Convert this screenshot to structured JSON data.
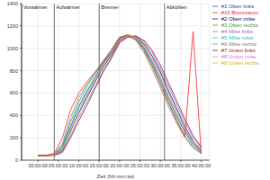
{
  "chart_data": {
    "type": "line",
    "x_label": "Zeit (hh:mm:ss)",
    "x": [
      0,
      2,
      4,
      6,
      8,
      10,
      12,
      14,
      16,
      18,
      20,
      22,
      24,
      26,
      28,
      30,
      32,
      34,
      36,
      38,
      40
    ],
    "xlim": [
      -4,
      42
    ],
    "xticks": [
      {
        "value": 0,
        "label": "00:00:00"
      },
      {
        "value": 5,
        "label": "05:00:00"
      },
      {
        "value": 10,
        "label": "10:00:00"
      },
      {
        "value": 15,
        "label": "15:00:00"
      },
      {
        "value": 20,
        "label": "20:00:00"
      },
      {
        "value": 25,
        "label": "25:00:00"
      },
      {
        "value": 30,
        "label": "30:00:00"
      },
      {
        "value": 35,
        "label": "35:00:00"
      },
      {
        "value": 40,
        "label": "40:00:00"
      }
    ],
    "ylim": [
      0,
      1400
    ],
    "yticks": [
      0,
      200,
      400,
      600,
      800,
      1000,
      1200,
      1400
    ],
    "grid": true,
    "legend": "right",
    "annotations": [
      {
        "label": "Vorwärmer",
        "x": -4
      },
      {
        "label": "Aufwärmer",
        "x": 4
      },
      {
        "label": "Brenner",
        "x": 15
      },
      {
        "label": "Abkühlen",
        "x": 31
      }
    ],
    "series": [
      {
        "name": "#1 Oben links",
        "color": "#1f3fbf",
        "values": [
          40,
          40,
          50,
          120,
          300,
          480,
          620,
          740,
          870,
          960,
          1090,
          1115,
          1095,
          1000,
          870,
          720,
          550,
          390,
          250,
          140,
          70
        ]
      },
      {
        "name": "#2 Oben mitte",
        "color": "#000080",
        "values": [
          40,
          42,
          45,
          90,
          260,
          420,
          560,
          700,
          830,
          940,
          1070,
          1110,
          1105,
          1040,
          930,
          790,
          620,
          460,
          300,
          170,
          90
        ]
      },
      {
        "name": "#3 Oben rechts",
        "color": "#2ca02c",
        "values": [
          45,
          45,
          50,
          130,
          340,
          520,
          660,
          770,
          880,
          980,
          1100,
          1120,
          1090,
          990,
          850,
          690,
          520,
          360,
          220,
          120,
          60
        ]
      },
      {
        "name": "#4 Mitte links",
        "color": "#9467bd",
        "values": [
          40,
          40,
          45,
          80,
          220,
          380,
          520,
          660,
          800,
          920,
          1060,
          1105,
          1110,
          1060,
          960,
          820,
          660,
          500,
          340,
          200,
          110
        ]
      },
      {
        "name": "#5 Mitte mitte",
        "color": "#17becf",
        "values": [
          40,
          40,
          48,
          110,
          290,
          470,
          610,
          730,
          860,
          960,
          1085,
          1115,
          1100,
          1010,
          880,
          730,
          560,
          400,
          260,
          150,
          80
        ]
      },
      {
        "name": "#6 Mitte rechts",
        "color": "#7f7f7f",
        "values": [
          42,
          42,
          50,
          150,
          380,
          560,
          680,
          780,
          890,
          990,
          1100,
          1110,
          1070,
          960,
          810,
          650,
          480,
          330,
          200,
          110,
          60
        ]
      },
      {
        "name": "#7 Unten links",
        "color": "#8c1a1a",
        "values": [
          40,
          40,
          42,
          70,
          200,
          350,
          490,
          640,
          790,
          910,
          1050,
          1100,
          1110,
          1070,
          980,
          850,
          690,
          530,
          370,
          220,
          120
        ]
      },
      {
        "name": "#8 Unten mitte",
        "color": "#e377c2",
        "values": [
          40,
          40,
          45,
          95,
          270,
          440,
          590,
          710,
          840,
          950,
          1075,
          1110,
          1100,
          1030,
          910,
          770,
          600,
          440,
          280,
          160,
          85
        ]
      },
      {
        "name": "#9 Unten rechts",
        "color": "#bcbd22",
        "values": [
          40,
          40,
          47,
          105,
          250,
          430,
          580,
          720,
          850,
          955,
          1080,
          1112,
          1098,
          1020,
          895,
          745,
          575,
          415,
          265,
          150,
          75
        ]
      },
      {
        "name": "#10 Brennraum",
        "color": "#ff2020",
        "values": [
          45,
          45,
          60,
          200,
          450,
          600,
          700,
          790,
          880,
          970,
          1090,
          1120,
          1080,
          980,
          840,
          680,
          510,
          350,
          210,
          1150,
          60
        ]
      }
    ]
  }
}
